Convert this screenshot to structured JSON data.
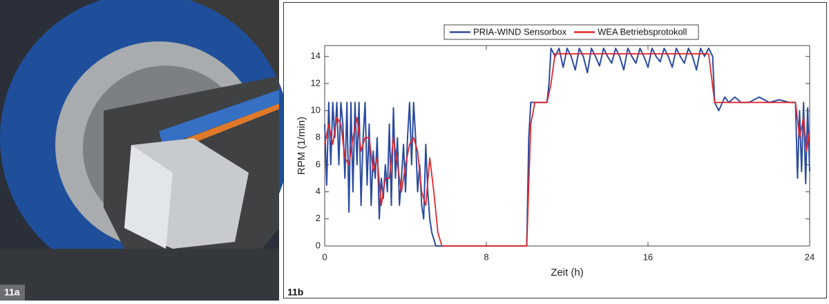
{
  "photo_label": "11a",
  "chart_label": "11b",
  "chart_data": {
    "type": "line",
    "xlabel": "Zeit (h)",
    "ylabel": "RPM (1/min)",
    "xlim": [
      0,
      24
    ],
    "xticks": [
      0,
      8,
      16,
      24
    ],
    "ylim": [
      0,
      14.8
    ],
    "yticks": [
      0,
      2,
      4,
      6,
      8,
      10,
      12,
      14
    ],
    "legend": "upper center",
    "series": [
      {
        "name": "PRIA-WIND Sensorbox",
        "color": "#2b4ba0",
        "x": [
          0,
          0.1,
          0.2,
          0.3,
          0.4,
          0.5,
          0.6,
          0.7,
          0.8,
          0.9,
          1.0,
          1.1,
          1.2,
          1.3,
          1.4,
          1.5,
          1.6,
          1.7,
          1.8,
          1.9,
          2.0,
          2.1,
          2.2,
          2.3,
          2.4,
          2.5,
          2.6,
          2.7,
          2.8,
          2.9,
          3.0,
          3.1,
          3.2,
          3.3,
          3.4,
          3.5,
          3.6,
          3.7,
          3.8,
          3.9,
          4.0,
          4.1,
          4.2,
          4.3,
          4.4,
          4.5,
          4.6,
          4.7,
          4.8,
          4.9,
          5.0,
          5.1,
          5.2,
          5.3,
          5.5,
          9.9,
          10.0,
          10.1,
          10.2,
          11.0,
          11.1,
          11.2,
          11.4,
          11.6,
          11.8,
          12.0,
          12.2,
          12.4,
          12.6,
          12.8,
          13.0,
          13.2,
          13.4,
          13.6,
          13.8,
          14.0,
          14.2,
          14.4,
          14.6,
          14.8,
          15.0,
          15.2,
          15.4,
          15.6,
          15.8,
          16.0,
          16.2,
          16.4,
          16.6,
          16.8,
          17.0,
          17.2,
          17.4,
          17.6,
          17.8,
          18.0,
          18.2,
          18.4,
          18.6,
          18.8,
          19.0,
          19.2,
          19.3,
          19.5,
          19.8,
          20.0,
          20.3,
          20.6,
          21.0,
          21.5,
          22.0,
          22.5,
          23.0,
          23.3,
          23.4,
          23.5,
          23.6,
          23.7,
          23.8,
          23.9,
          24.0
        ],
        "values": [
          9,
          4.5,
          10.6,
          6,
          10.6,
          8,
          10.6,
          6,
          10.6,
          9,
          5,
          10.6,
          2.5,
          10.6,
          4,
          10.6,
          6,
          10.6,
          3,
          8,
          10.6,
          4.5,
          9,
          3,
          7,
          5,
          8,
          2,
          5,
          3.5,
          6,
          4,
          9,
          3,
          10.2,
          5,
          8,
          3,
          5,
          7.5,
          4,
          8,
          10.6,
          6,
          10.6,
          8,
          4,
          6,
          3,
          2,
          7.5,
          4,
          2,
          1,
          0,
          0,
          0,
          8,
          10.6,
          10.6,
          12,
          14.6,
          14,
          14.6,
          13.2,
          14.6,
          14,
          13,
          14.6,
          14,
          12.8,
          14.6,
          14,
          13.3,
          14.6,
          14,
          13.5,
          14.6,
          14,
          13,
          14.6,
          14,
          13.5,
          14.6,
          14,
          13.2,
          14.6,
          14,
          13.6,
          14.6,
          14,
          13.2,
          14.6,
          14,
          13.5,
          14.6,
          14,
          13,
          14.6,
          14,
          14.6,
          14,
          10.6,
          10,
          11,
          10.6,
          11,
          10.6,
          10.6,
          11,
          10.6,
          10.8,
          10.6,
          10.6,
          5,
          10,
          5.5,
          10.6,
          4.6,
          10.2,
          5.5
        ]
      },
      {
        "name": "WEA Betriebsprotokoll",
        "color": "#e0262c",
        "x": [
          0,
          0.2,
          0.4,
          0.6,
          0.8,
          1.0,
          1.2,
          1.4,
          1.6,
          1.8,
          2.0,
          2.2,
          2.4,
          2.6,
          2.8,
          3.0,
          3.2,
          3.4,
          3.6,
          3.8,
          4.0,
          4.2,
          4.4,
          4.6,
          4.8,
          5.0,
          5.2,
          5.4,
          5.6,
          5.8,
          10,
          10.2,
          10.4,
          11,
          11.2,
          11.4,
          19,
          19.3,
          23.3,
          23.5,
          23.7,
          23.85,
          24
        ],
        "values": [
          7.5,
          9,
          7.5,
          9.5,
          9,
          6.5,
          6,
          8,
          9.5,
          7,
          8,
          8,
          5.5,
          6.5,
          3,
          5,
          5,
          8,
          6,
          4,
          6,
          7.5,
          8,
          7,
          4,
          3,
          6.5,
          4,
          1,
          0,
          0,
          9,
          10.6,
          10.6,
          12,
          14.2,
          14.2,
          10.6,
          10.6,
          8,
          9.5,
          7,
          8.5
        ]
      }
    ]
  }
}
